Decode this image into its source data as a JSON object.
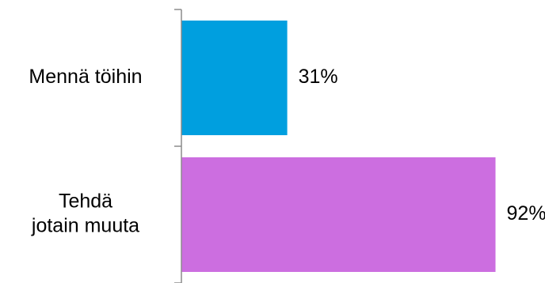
{
  "chart_data": {
    "type": "bar",
    "orientation": "horizontal",
    "categories": [
      [
        "Mennä töihin"
      ],
      [
        "Tehdä",
        "jotain muuta"
      ]
    ],
    "values": [
      31,
      92
    ],
    "data_labels": [
      "31%",
      "92%"
    ],
    "unit": "%",
    "xlim": [
      0,
      100
    ],
    "colors": [
      "#009FDF",
      "#CC6EE0"
    ],
    "grid": false,
    "legend": "none"
  }
}
